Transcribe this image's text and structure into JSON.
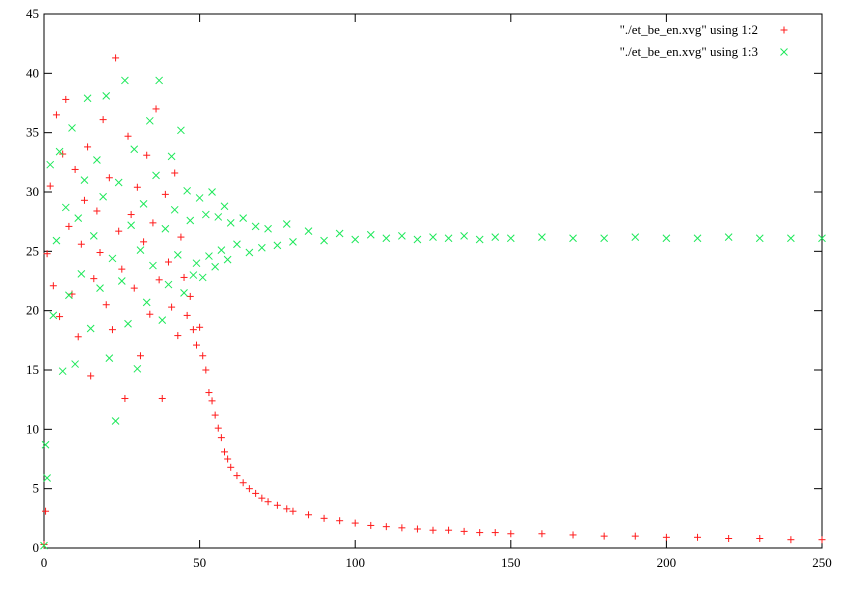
{
  "chart_data": {
    "type": "scatter",
    "xlim": [
      0,
      250
    ],
    "ylim": [
      0,
      45
    ],
    "x_ticks": [
      0,
      50,
      100,
      150,
      200,
      250
    ],
    "y_ticks": [
      0,
      5,
      10,
      15,
      20,
      25,
      30,
      35,
      40,
      45
    ],
    "grid": false,
    "legend_position": "top-right",
    "series": [
      {
        "name": "\"./et_be_en.xvg\" using 1:2",
        "color": "#ff1a1a",
        "marker": "plus",
        "points": [
          [
            0,
            0.3
          ],
          [
            0.5,
            3.1
          ],
          [
            1,
            24.8
          ],
          [
            2,
            30.5
          ],
          [
            3,
            22.1
          ],
          [
            4,
            36.5
          ],
          [
            5,
            19.5
          ],
          [
            6,
            33.2
          ],
          [
            7,
            37.8
          ],
          [
            8,
            27.1
          ],
          [
            9,
            21.4
          ],
          [
            10,
            31.9
          ],
          [
            11,
            17.8
          ],
          [
            12,
            25.6
          ],
          [
            13,
            29.3
          ],
          [
            14,
            33.8
          ],
          [
            15,
            14.5
          ],
          [
            16,
            22.7
          ],
          [
            17,
            28.4
          ],
          [
            18,
            24.9
          ],
          [
            19,
            36.1
          ],
          [
            20,
            20.5
          ],
          [
            21,
            31.2
          ],
          [
            22,
            18.4
          ],
          [
            23,
            41.3
          ],
          [
            24,
            26.7
          ],
          [
            25,
            23.5
          ],
          [
            26,
            12.6
          ],
          [
            27,
            34.7
          ],
          [
            28,
            28.1
          ],
          [
            29,
            21.9
          ],
          [
            30,
            30.4
          ],
          [
            31,
            16.2
          ],
          [
            32,
            25.8
          ],
          [
            33,
            33.1
          ],
          [
            34,
            19.7
          ],
          [
            35,
            27.4
          ],
          [
            36,
            37.0
          ],
          [
            37,
            22.6
          ],
          [
            38,
            12.6
          ],
          [
            39,
            29.8
          ],
          [
            40,
            24.1
          ],
          [
            41,
            20.3
          ],
          [
            42,
            31.6
          ],
          [
            43,
            17.9
          ],
          [
            44,
            26.2
          ],
          [
            45,
            22.8
          ],
          [
            46,
            19.6
          ],
          [
            47,
            21.2
          ],
          [
            48,
            18.4
          ],
          [
            49,
            17.1
          ],
          [
            50,
            18.6
          ],
          [
            51,
            16.2
          ],
          [
            52,
            15.0
          ],
          [
            53,
            13.1
          ],
          [
            54,
            12.4
          ],
          [
            55,
            11.2
          ],
          [
            56,
            10.1
          ],
          [
            57,
            9.3
          ],
          [
            58,
            8.1
          ],
          [
            59,
            7.5
          ],
          [
            60,
            6.8
          ],
          [
            62,
            6.1
          ],
          [
            64,
            5.5
          ],
          [
            66,
            5.0
          ],
          [
            68,
            4.6
          ],
          [
            70,
            4.2
          ],
          [
            72,
            3.9
          ],
          [
            75,
            3.6
          ],
          [
            78,
            3.3
          ],
          [
            80,
            3.1
          ],
          [
            85,
            2.8
          ],
          [
            90,
            2.5
          ],
          [
            95,
            2.3
          ],
          [
            100,
            2.1
          ],
          [
            105,
            1.9
          ],
          [
            110,
            1.8
          ],
          [
            115,
            1.7
          ],
          [
            120,
            1.6
          ],
          [
            125,
            1.5
          ],
          [
            130,
            1.5
          ],
          [
            135,
            1.4
          ],
          [
            140,
            1.3
          ],
          [
            145,
            1.3
          ],
          [
            150,
            1.2
          ],
          [
            160,
            1.2
          ],
          [
            170,
            1.1
          ],
          [
            180,
            1.0
          ],
          [
            190,
            1.0
          ],
          [
            200,
            0.9
          ],
          [
            210,
            0.9
          ],
          [
            220,
            0.8
          ],
          [
            230,
            0.8
          ],
          [
            240,
            0.7
          ],
          [
            250,
            0.7
          ]
        ]
      },
      {
        "name": "\"./et_be_en.xvg\" using 1:3",
        "color": "#1ee85a",
        "marker": "cross",
        "points": [
          [
            0,
            0.2
          ],
          [
            0.5,
            8.7
          ],
          [
            1,
            5.9
          ],
          [
            2,
            32.3
          ],
          [
            3,
            19.6
          ],
          [
            4,
            25.9
          ],
          [
            5,
            33.4
          ],
          [
            6,
            14.9
          ],
          [
            7,
            28.7
          ],
          [
            8,
            21.3
          ],
          [
            9,
            35.4
          ],
          [
            10,
            15.5
          ],
          [
            11,
            27.8
          ],
          [
            12,
            23.1
          ],
          [
            13,
            31.0
          ],
          [
            14,
            37.9
          ],
          [
            15,
            18.5
          ],
          [
            16,
            26.3
          ],
          [
            17,
            32.7
          ],
          [
            18,
            21.9
          ],
          [
            19,
            29.6
          ],
          [
            20,
            38.1
          ],
          [
            21,
            16.0
          ],
          [
            22,
            24.4
          ],
          [
            23,
            10.7
          ],
          [
            24,
            30.8
          ],
          [
            25,
            22.5
          ],
          [
            26,
            39.4
          ],
          [
            27,
            18.9
          ],
          [
            28,
            27.2
          ],
          [
            29,
            33.6
          ],
          [
            30,
            15.1
          ],
          [
            31,
            25.1
          ],
          [
            32,
            29.0
          ],
          [
            33,
            20.7
          ],
          [
            34,
            36.0
          ],
          [
            35,
            23.8
          ],
          [
            36,
            31.4
          ],
          [
            37,
            39.4
          ],
          [
            38,
            19.2
          ],
          [
            39,
            26.9
          ],
          [
            40,
            22.2
          ],
          [
            41,
            33.0
          ],
          [
            42,
            28.5
          ],
          [
            43,
            24.7
          ],
          [
            44,
            35.2
          ],
          [
            45,
            21.5
          ],
          [
            46,
            30.1
          ],
          [
            47,
            27.6
          ],
          [
            48,
            23.0
          ],
          [
            49,
            24.0
          ],
          [
            50,
            29.5
          ],
          [
            51,
            22.8
          ],
          [
            52,
            28.1
          ],
          [
            53,
            24.6
          ],
          [
            54,
            30.0
          ],
          [
            55,
            23.7
          ],
          [
            56,
            27.9
          ],
          [
            57,
            25.1
          ],
          [
            58,
            28.8
          ],
          [
            59,
            24.3
          ],
          [
            60,
            27.4
          ],
          [
            62,
            25.6
          ],
          [
            64,
            27.8
          ],
          [
            66,
            24.9
          ],
          [
            68,
            27.1
          ],
          [
            70,
            25.3
          ],
          [
            72,
            26.9
          ],
          [
            75,
            25.5
          ],
          [
            78,
            27.3
          ],
          [
            80,
            25.8
          ],
          [
            85,
            26.7
          ],
          [
            90,
            25.9
          ],
          [
            95,
            26.5
          ],
          [
            100,
            26.0
          ],
          [
            105,
            26.4
          ],
          [
            110,
            26.1
          ],
          [
            115,
            26.3
          ],
          [
            120,
            26.0
          ],
          [
            125,
            26.2
          ],
          [
            130,
            26.1
          ],
          [
            135,
            26.3
          ],
          [
            140,
            26.0
          ],
          [
            145,
            26.2
          ],
          [
            150,
            26.1
          ],
          [
            160,
            26.2
          ],
          [
            170,
            26.1
          ],
          [
            180,
            26.1
          ],
          [
            190,
            26.2
          ],
          [
            200,
            26.1
          ],
          [
            210,
            26.1
          ],
          [
            220,
            26.2
          ],
          [
            230,
            26.1
          ],
          [
            240,
            26.1
          ],
          [
            250,
            26.1
          ]
        ]
      }
    ]
  }
}
